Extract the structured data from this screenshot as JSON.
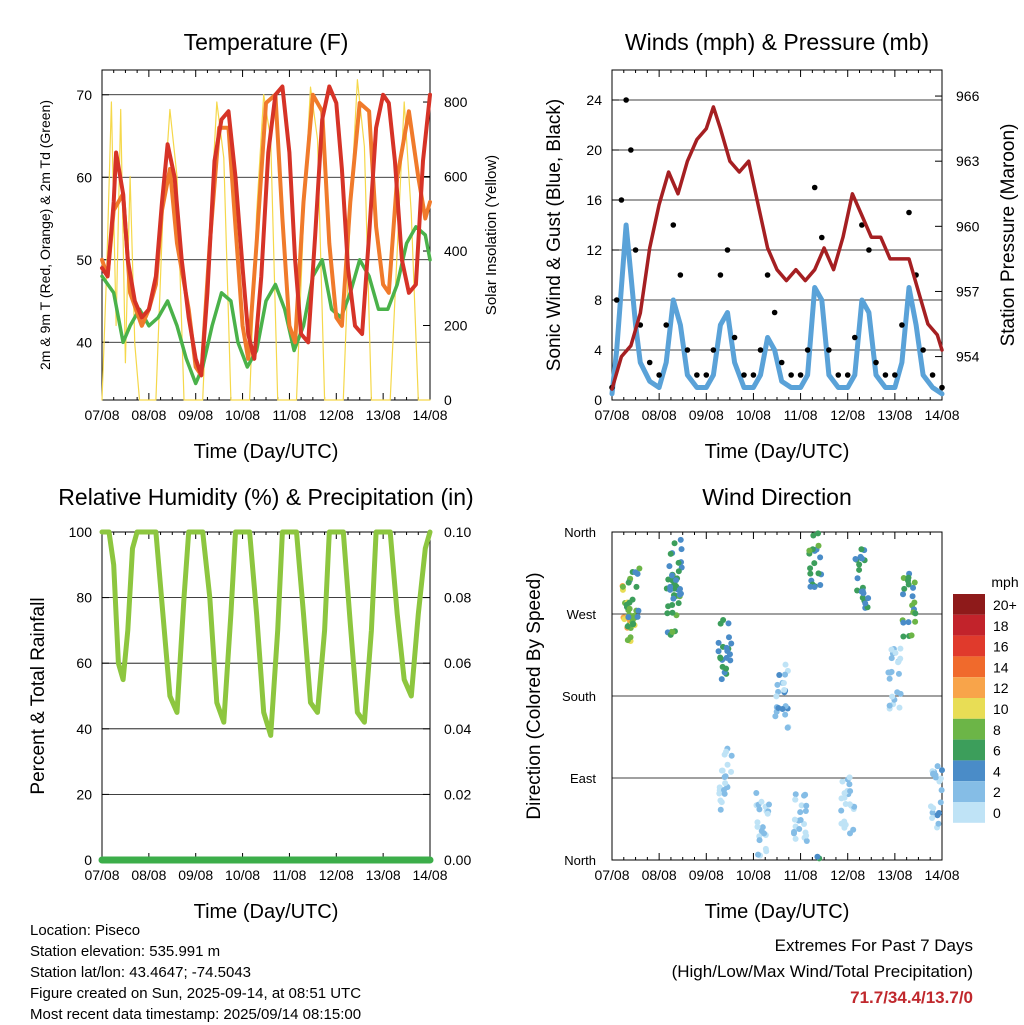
{
  "colors": {
    "t2m": "#d63327",
    "t9m": "#f07a2b",
    "td": "#4ab24a",
    "solar": "#f5d84a",
    "gust": "#000000",
    "wind": "#5aa2d8",
    "pressure": "#a51f22",
    "rh": "#8dc63f",
    "precip": "#3cae4a",
    "extremes": "#c0282d"
  },
  "chart_data": [
    {
      "type": "line",
      "title": "Temperature (F)",
      "xlabel": "Time (Day/UTC)",
      "ylabel": "2m & 9m T (Red, Orange) & 2m Td (Green)",
      "y2label": "Solar Insolation (Yellow)",
      "x_ticks": [
        "07/08",
        "08/08",
        "09/08",
        "10/08",
        "11/08",
        "12/08",
        "13/08",
        "14/08"
      ],
      "ylim": [
        33,
        73
      ],
      "y_ticks": [
        40,
        50,
        60,
        70
      ],
      "y2lim": [
        0,
        886
      ],
      "y2_ticks": [
        0,
        200,
        400,
        600,
        800
      ],
      "series": [
        {
          "name": "2m T",
          "color": "#d63327",
          "x": [
            0,
            0.12,
            0.25,
            0.3,
            0.45,
            0.55,
            0.7,
            0.85,
            1,
            1.15,
            1.28,
            1.4,
            1.55,
            1.7,
            1.85,
            2,
            2.12,
            2.25,
            2.4,
            2.55,
            2.7,
            2.85,
            3,
            3.12,
            3.25,
            3.4,
            3.55,
            3.7,
            3.85,
            4,
            4.12,
            4.25,
            4.4,
            4.55,
            4.7,
            4.85,
            5,
            5.12,
            5.25,
            5.4,
            5.55,
            5.7,
            5.85,
            6,
            6.12,
            6.25,
            6.4,
            6.55,
            6.7,
            6.85,
            7
          ],
          "y": [
            49,
            48,
            57,
            63,
            58,
            50,
            45,
            43,
            44,
            48,
            57,
            64,
            60,
            50,
            43,
            38,
            36,
            46,
            62,
            67,
            68,
            60,
            49,
            41,
            38,
            48,
            63,
            70,
            71,
            63,
            50,
            41,
            40,
            53,
            67,
            71,
            69,
            61,
            49,
            42,
            41,
            53,
            66,
            70,
            69,
            62,
            50,
            46,
            47,
            62,
            70
          ]
        },
        {
          "name": "9m T",
          "color": "#f07a2b",
          "x": [
            0,
            0.12,
            0.25,
            0.45,
            0.6,
            0.85,
            1,
            1.15,
            1.28,
            1.45,
            1.6,
            1.85,
            2,
            2.12,
            2.3,
            2.5,
            2.7,
            2.85,
            3,
            3.12,
            3.3,
            3.5,
            3.7,
            3.85,
            4,
            4.12,
            4.3,
            4.5,
            4.7,
            4.85,
            5,
            5.12,
            5.3,
            5.5,
            5.7,
            5.85,
            6,
            6.12,
            6.3,
            6.55,
            6.75,
            6.9,
            7
          ],
          "y": [
            50,
            48,
            56,
            58,
            46,
            42,
            44,
            47,
            56,
            61,
            52,
            44,
            37,
            36,
            52,
            66,
            66,
            54,
            42,
            38,
            52,
            69,
            70,
            55,
            42,
            40,
            57,
            70,
            68,
            52,
            43,
            42,
            57,
            69,
            68,
            54,
            47,
            46,
            60,
            68,
            60,
            55,
            57
          ]
        },
        {
          "name": "2m Td",
          "color": "#4ab24a",
          "x": [
            0,
            0.25,
            0.45,
            0.6,
            0.8,
            1,
            1.2,
            1.4,
            1.6,
            1.8,
            2,
            2.15,
            2.35,
            2.55,
            2.75,
            2.9,
            3.1,
            3.3,
            3.5,
            3.7,
            3.9,
            4.1,
            4.3,
            4.5,
            4.7,
            4.9,
            5.1,
            5.3,
            5.5,
            5.7,
            5.9,
            6.1,
            6.3,
            6.5,
            6.7,
            6.9,
            7
          ],
          "y": [
            48,
            46,
            40,
            42,
            44,
            42,
            43,
            45,
            42,
            38,
            35,
            37,
            42,
            46,
            45,
            40,
            37,
            39,
            45,
            47,
            44,
            39,
            42,
            48,
            50,
            44,
            43,
            46,
            50,
            48,
            44,
            44,
            47,
            52,
            54,
            53,
            50
          ]
        },
        {
          "name": "Solar Insolation",
          "color": "#f5d84a",
          "x": [
            0,
            0.1,
            0.2,
            0.3,
            0.4,
            0.5,
            0.6,
            0.7,
            0.8,
            1.15,
            1.3,
            1.45,
            1.6,
            1.75,
            2.15,
            2.3,
            2.45,
            2.6,
            2.75,
            3.15,
            3.3,
            3.45,
            3.6,
            3.75,
            4.15,
            4.3,
            4.45,
            4.6,
            4.75,
            5.15,
            5.3,
            5.45,
            5.6,
            5.75,
            6.15,
            6.3,
            6.45,
            6.6,
            6.75,
            7
          ],
          "y": [
            0,
            350,
            800,
            200,
            780,
            100,
            600,
            150,
            0,
            0,
            500,
            780,
            600,
            0,
            0,
            450,
            800,
            650,
            0,
            0,
            500,
            820,
            700,
            0,
            0,
            480,
            840,
            700,
            0,
            0,
            500,
            860,
            680,
            0,
            0,
            400,
            800,
            500,
            0,
            0
          ]
        }
      ]
    },
    {
      "type": "line",
      "title": "Winds (mph) & Pressure (mb)",
      "xlabel": "Time (Day/UTC)",
      "ylabel": "Sonic Wind & Gust (Blue, Black)",
      "y2label": "Station Pressure (Maroon)",
      "x_ticks": [
        "07/08",
        "08/08",
        "09/08",
        "10/08",
        "11/08",
        "12/08",
        "13/08",
        "14/08"
      ],
      "ylim": [
        0,
        26.4
      ],
      "y_ticks": [
        0,
        4,
        8,
        12,
        16,
        20,
        24
      ],
      "y2lim": [
        952,
        967.2
      ],
      "y2_ticks": [
        954,
        957,
        960,
        963,
        966
      ],
      "series": [
        {
          "name": "Gust",
          "color": "#000000",
          "x": [
            0,
            0.1,
            0.2,
            0.3,
            0.4,
            0.5,
            0.6,
            0.8,
            1,
            1.15,
            1.3,
            1.45,
            1.6,
            1.8,
            2,
            2.15,
            2.3,
            2.45,
            2.6,
            2.8,
            3,
            3.15,
            3.3,
            3.45,
            3.6,
            3.8,
            4,
            4.15,
            4.3,
            4.45,
            4.6,
            4.8,
            5,
            5.15,
            5.3,
            5.45,
            5.6,
            5.8,
            6,
            6.15,
            6.3,
            6.45,
            6.6,
            6.8,
            7
          ],
          "y": [
            1,
            8,
            16,
            24,
            20,
            12,
            6,
            3,
            2,
            6,
            14,
            10,
            4,
            2,
            2,
            4,
            10,
            12,
            5,
            2,
            2,
            4,
            10,
            7,
            3,
            2,
            2,
            4,
            17,
            13,
            4,
            2,
            2,
            5,
            14,
            12,
            3,
            2,
            2,
            6,
            15,
            10,
            4,
            2,
            1
          ]
        },
        {
          "name": "Sonic Wind",
          "color": "#5aa2d8",
          "x": [
            0,
            0.1,
            0.2,
            0.3,
            0.4,
            0.5,
            0.6,
            0.8,
            1,
            1.15,
            1.3,
            1.45,
            1.6,
            1.8,
            2,
            2.15,
            2.3,
            2.45,
            2.6,
            2.8,
            3,
            3.15,
            3.3,
            3.45,
            3.6,
            3.8,
            4,
            4.15,
            4.3,
            4.45,
            4.6,
            4.8,
            5,
            5.15,
            5.3,
            5.45,
            5.6,
            5.8,
            6,
            6.15,
            6.3,
            6.45,
            6.6,
            6.8,
            7
          ],
          "y": [
            0.5,
            4,
            9,
            14,
            10,
            6,
            3,
            1.5,
            1,
            3,
            8,
            6,
            2,
            1,
            1,
            2,
            6,
            7,
            3,
            1,
            1,
            2,
            5,
            4,
            1.5,
            1,
            1,
            2,
            9,
            8,
            2,
            1,
            1,
            2,
            8,
            7,
            2,
            1,
            1,
            3,
            9,
            6,
            2,
            1,
            0.5
          ]
        }
      ],
      "pressure": {
        "name": "Station Pressure",
        "color": "#a51f22",
        "x": [
          0,
          0.2,
          0.4,
          0.6,
          0.8,
          1,
          1.2,
          1.4,
          1.6,
          1.8,
          2,
          2.15,
          2.3,
          2.5,
          2.7,
          2.9,
          3.1,
          3.3,
          3.5,
          3.7,
          3.9,
          4.1,
          4.3,
          4.5,
          4.7,
          4.9,
          5.1,
          5.3,
          5.5,
          5.7,
          5.9,
          6.1,
          6.3,
          6.5,
          6.7,
          6.9,
          7
        ],
        "y": [
          952.5,
          954,
          954.5,
          956,
          959,
          961,
          962.5,
          961.5,
          963,
          964,
          964.5,
          965.5,
          964.5,
          963,
          962.5,
          963,
          961,
          959,
          958,
          957.5,
          958,
          957.5,
          958,
          959,
          958,
          959.5,
          961.5,
          960.5,
          959.5,
          959.5,
          958.5,
          958.5,
          958.5,
          957,
          955.5,
          955,
          954.3
        ]
      }
    },
    {
      "type": "line",
      "title": "Relative Humidity (%) & Precipitation (in)",
      "xlabel": "Time (Day/UTC)",
      "ylabel": "Percent & Total Rainfall",
      "x_ticks": [
        "07/08",
        "08/08",
        "09/08",
        "10/08",
        "11/08",
        "12/08",
        "13/08",
        "14/08"
      ],
      "ylim": [
        0,
        100
      ],
      "y_ticks": [
        0,
        20,
        40,
        60,
        80,
        100
      ],
      "y2lim": [
        0,
        0.1
      ],
      "y2_ticks": [
        "0.00",
        "0.02",
        "0.04",
        "0.06",
        "0.08",
        "0.10"
      ],
      "series": [
        {
          "name": "Relative Humidity",
          "color": "#8dc63f",
          "x": [
            0,
            0.15,
            0.25,
            0.35,
            0.45,
            0.55,
            0.65,
            0.75,
            0.85,
            1,
            1.15,
            1.3,
            1.45,
            1.6,
            1.75,
            1.85,
            2,
            2.15,
            2.3,
            2.45,
            2.6,
            2.75,
            2.85,
            3,
            3.15,
            3.3,
            3.45,
            3.6,
            3.75,
            3.85,
            4,
            4.15,
            4.3,
            4.45,
            4.6,
            4.75,
            4.85,
            5,
            5.15,
            5.3,
            5.45,
            5.6,
            5.75,
            5.85,
            6,
            6.15,
            6.3,
            6.45,
            6.6,
            6.75,
            6.9,
            7
          ],
          "y": [
            100,
            100,
            90,
            60,
            55,
            70,
            95,
            100,
            100,
            100,
            100,
            75,
            50,
            45,
            80,
            100,
            100,
            100,
            80,
            48,
            42,
            75,
            100,
            100,
            100,
            75,
            45,
            38,
            70,
            100,
            100,
            100,
            75,
            48,
            45,
            70,
            100,
            100,
            100,
            72,
            45,
            42,
            70,
            100,
            100,
            100,
            75,
            55,
            50,
            75,
            95,
            100
          ]
        },
        {
          "name": "Total Precipitation",
          "color": "#3cae4a",
          "x": [
            0,
            7
          ],
          "y": [
            0,
            0
          ]
        }
      ]
    },
    {
      "type": "scatter",
      "title": "Wind Direction",
      "xlabel": "Time (Day/UTC)",
      "ylabel": "Direction (Colored By Speed)",
      "x_ticks": [
        "07/08",
        "08/08",
        "09/08",
        "10/08",
        "11/08",
        "12/08",
        "13/08",
        "14/08"
      ],
      "y_ticks": [
        "North",
        "East",
        "South",
        "West",
        "North"
      ],
      "ylim": [
        0,
        360
      ],
      "legend_title": "mph",
      "legend_entries": [
        "20+",
        "18",
        "16",
        "14",
        "12",
        "10",
        "8",
        "6",
        "4",
        "2",
        "0"
      ],
      "legend_colors": [
        "#8e1a1a",
        "#c2232b",
        "#e03a2c",
        "#f06a2c",
        "#f8a44a",
        "#e8dd55",
        "#6cb547",
        "#3c9e5b",
        "#4a8cc8",
        "#85bde6",
        "#bfe3f6"
      ],
      "clusters": [
        {
          "x": 0.35,
          "dir": 270,
          "speed": 10
        },
        {
          "x": 0.45,
          "dir": 290,
          "speed": 6
        },
        {
          "x": 1.3,
          "dir": 280,
          "speed": 6
        },
        {
          "x": 1.35,
          "dir": 320,
          "speed": 5
        },
        {
          "x": 2.4,
          "dir": 230,
          "speed": 5
        },
        {
          "x": 2.4,
          "dir": 90,
          "speed": 1
        },
        {
          "x": 3.2,
          "dir": 40,
          "speed": 1
        },
        {
          "x": 3.6,
          "dir": 180,
          "speed": 2
        },
        {
          "x": 4.3,
          "dir": 330,
          "speed": 6
        },
        {
          "x": 4.0,
          "dir": 50,
          "speed": 1
        },
        {
          "x": 5.3,
          "dir": 310,
          "speed": 5
        },
        {
          "x": 5.0,
          "dir": 60,
          "speed": 1
        },
        {
          "x": 6.3,
          "dir": 280,
          "speed": 6
        },
        {
          "x": 6.0,
          "dir": 200,
          "speed": 1
        },
        {
          "x": 6.9,
          "dir": 70,
          "speed": 2
        }
      ]
    }
  ],
  "info": {
    "location": "Location: Piseco",
    "elevation": "Station elevation: 535.991 m",
    "latlon": "Station lat/lon: 43.4647; -74.5043",
    "created": "Figure created on Sun, 2025-09-14, at 08:51 UTC",
    "recent": "Most recent data timestamp: 2025/09/14 08:15:00"
  },
  "extremes": {
    "title": "Extremes For Past 7 Days",
    "subtitle": "(High/Low/Max Wind/Total Precipitation)",
    "values": "71.7/34.4/13.7/0"
  }
}
